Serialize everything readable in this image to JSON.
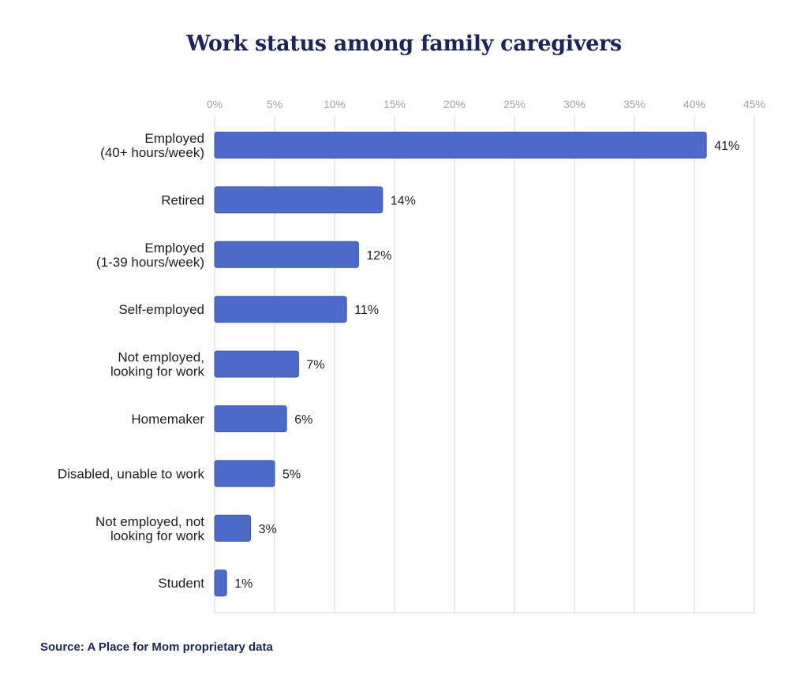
{
  "chart_data": {
    "type": "bar",
    "orientation": "horizontal",
    "title": "Work status among family caregivers",
    "categories": [
      [
        "Employed",
        "(40+ hours/week)"
      ],
      [
        "Retired"
      ],
      [
        "Employed",
        "(1-39 hours/week)"
      ],
      [
        "Self-employed"
      ],
      [
        "Not employed,",
        "looking for work"
      ],
      [
        "Homemaker"
      ],
      [
        "Disabled, unable to work"
      ],
      [
        "Not employed, not",
        "looking for work"
      ],
      [
        "Student"
      ]
    ],
    "values": [
      41,
      14,
      12,
      11,
      7,
      6,
      5,
      3,
      1
    ],
    "value_labels": [
      "41%",
      "14%",
      "12%",
      "11%",
      "7%",
      "6%",
      "5%",
      "3%",
      "1%"
    ],
    "xlim": [
      0,
      45
    ],
    "x_ticks": [
      0,
      5,
      10,
      15,
      20,
      25,
      30,
      35,
      40,
      45
    ],
    "x_tick_labels": [
      "0%",
      "5%",
      "10%",
      "15%",
      "20%",
      "25%",
      "30%",
      "35%",
      "40%",
      "45%"
    ],
    "x_axis_position": "top",
    "grid": true,
    "bar_color": "#4e6ac8",
    "bar_stroke": "#3f56b0",
    "grid_color": "#d4d4d4",
    "label_color": "#1c1c1c",
    "tick_label_color": "#a4a4a4"
  },
  "source": "Source: A Place for Mom proprietary data"
}
